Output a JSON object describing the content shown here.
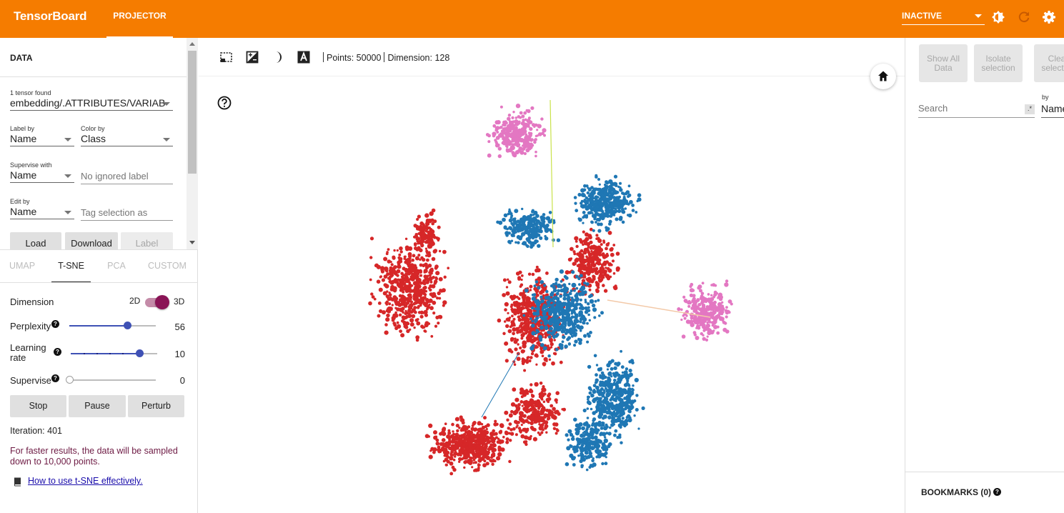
{
  "header": {
    "brand": "TensorBoard",
    "nav_tab": "PROJECTOR",
    "run_status": "INACTIVE",
    "icons": [
      "brightness-icon",
      "refresh-icon",
      "settings-icon"
    ],
    "color": "#f57c00"
  },
  "data_panel": {
    "title": "DATA",
    "tensor_found": "1 tensor found",
    "tensor_name": "embedding/.ATTRIBUTES/VARIAB",
    "label_by": {
      "label": "Label by",
      "value": "Name"
    },
    "color_by": {
      "label": "Color by",
      "value": "Class"
    },
    "supervise_with": {
      "label": "Supervise with",
      "value": "Name"
    },
    "ignored_label_placeholder": "No ignored label",
    "edit_by": {
      "label": "Edit by",
      "value": "Name"
    },
    "tag_selection_placeholder": "Tag selection as",
    "buttons": {
      "load": "Load",
      "download": "Download",
      "label": "Label"
    }
  },
  "projection_tabs": [
    "UMAP",
    "T-SNE",
    "PCA",
    "CUSTOM"
  ],
  "active_projection_tab": "T-SNE",
  "tsne": {
    "dimension_label": "Dimension",
    "dim_2d": "2D",
    "dim_3d": "3D",
    "dimension_selected": "3D",
    "perplexity": {
      "label": "Perplexity",
      "value": "56",
      "fraction": 0.67
    },
    "learning_rate": {
      "label": "Learning rate",
      "value": "10",
      "fraction": 0.79
    },
    "supervise": {
      "label": "Supervise",
      "value": "0",
      "fraction": 0.0
    },
    "buttons": {
      "stop": "Stop",
      "pause": "Pause",
      "perturb": "Perturb"
    },
    "iteration": "Iteration: 401",
    "sampling_note": "For faster results, the data will be sampled down to 10,000 points.",
    "help_link": "How to use t-SNE effectively."
  },
  "toolbar": {
    "points": "Points: 50000",
    "dimension": "Dimension: 128",
    "icons": [
      "box-select-icon",
      "night-mode-icon",
      "moon-icon",
      "label-a-icon",
      "home-icon",
      "help-icon"
    ]
  },
  "scatter_colors": {
    "red": "#d62728",
    "blue": "#1f77b4",
    "pink": "#e377c2"
  },
  "inspector": {
    "show_all": "Show All Data",
    "isolate": "Isolate selection",
    "clear": "Clear selection",
    "search_placeholder": "Search",
    "regex": ".*",
    "by_label": "by",
    "by_value": "Name",
    "bookmarks": "BOOKMARKS (0)"
  }
}
